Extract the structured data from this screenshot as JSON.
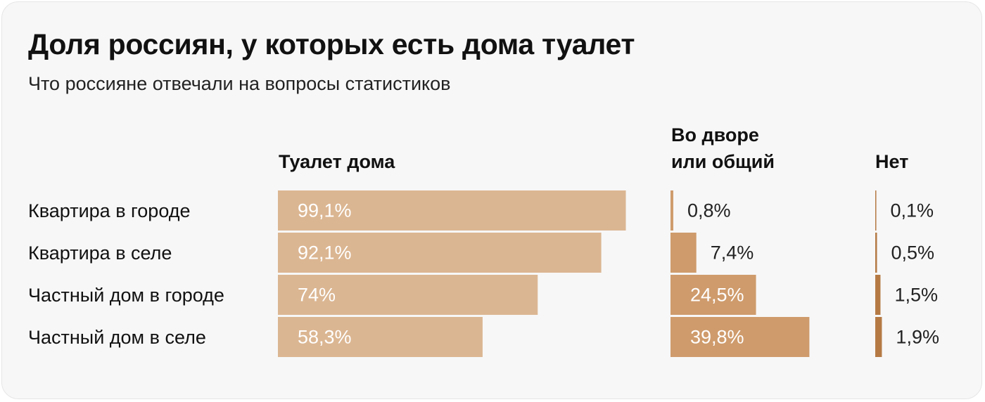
{
  "title": "Доля россиян, у которых есть дома туалет",
  "subtitle": "Что россияне отвечали на вопросы статистиков",
  "colors": {
    "home": "#dbb692",
    "yard": "#cf9b6c",
    "none": "#b57a44",
    "label_light": "#ffffff",
    "label_dark": "#222222"
  },
  "chart_data": {
    "type": "bar",
    "orientation": "horizontal",
    "categories": [
      "Квартира в городе",
      "Квартира в селе",
      "Частный дом в городе",
      "Частный дом в селе"
    ],
    "series": [
      {
        "name": "Туалет дома",
        "values": [
          99.1,
          92.1,
          74,
          58.3
        ],
        "labels": [
          "99,1%",
          "92,1%",
          "74%",
          "58,3%"
        ]
      },
      {
        "name": "Во дворе или общий",
        "name_lines": [
          "Во дворе",
          "или общий"
        ],
        "values": [
          0.8,
          7.4,
          24.5,
          39.8
        ],
        "labels": [
          "0,8%",
          "7,4%",
          "24,5%",
          "39,8%"
        ]
      },
      {
        "name": "Нет",
        "values": [
          0.1,
          0.5,
          1.5,
          1.9
        ],
        "labels": [
          "0,1%",
          "0,5%",
          "1,5%",
          "1,9%"
        ]
      }
    ],
    "unit": "%",
    "grid": false,
    "legend": "column headers"
  }
}
